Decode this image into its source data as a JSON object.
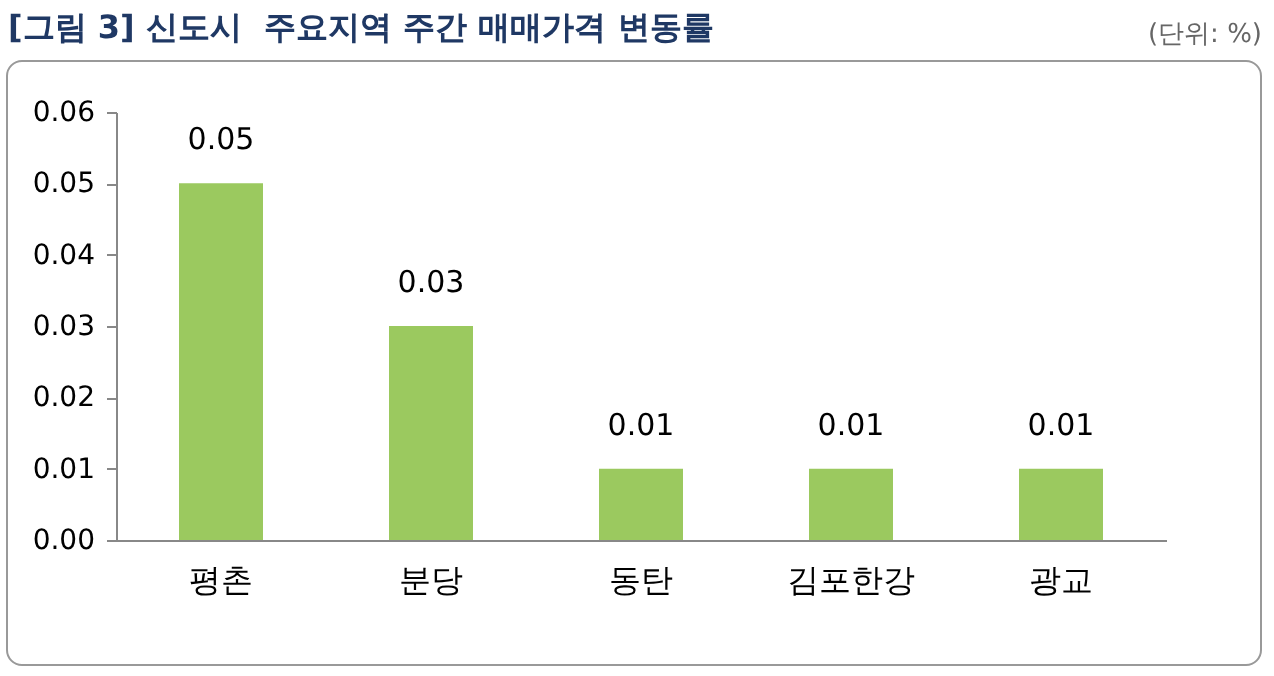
{
  "chart_data": {
    "type": "bar",
    "title": "[그림 3] 신도시  주요지역 주간 매매가격 변동률",
    "annotations": [
      "(단위: %)"
    ],
    "categories": [
      "평촌",
      "분당",
      "동탄",
      "김포한강",
      "광교"
    ],
    "values": [
      0.05,
      0.03,
      0.01,
      0.01,
      0.01
    ],
    "color": "#9bc95f",
    "ylim": [
      0,
      0.06
    ],
    "yticks": [
      {
        "value": 0,
        "label": "0.00"
      },
      0.01,
      0.02,
      0.03,
      0.04,
      0.05,
      0.06
    ],
    "grid": false,
    "data_labels": true
  }
}
